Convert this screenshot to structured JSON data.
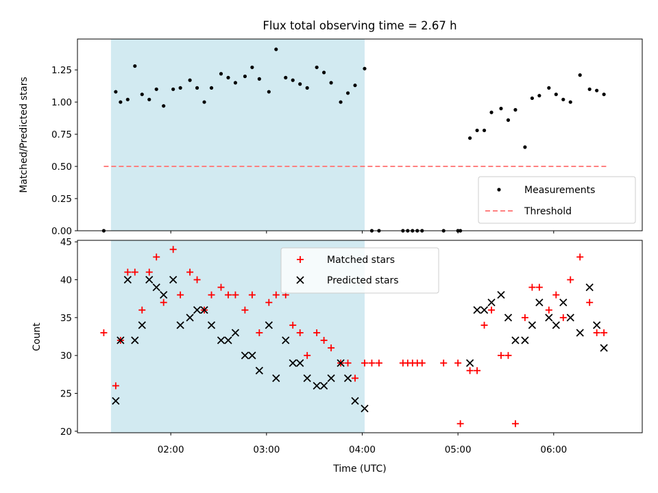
{
  "chart_data": {
    "type": "scatter",
    "title": "Flux total observing time = 2.67 h",
    "xlabel": "Time (UTC)",
    "x_tick_labels": [
      "02:00",
      "03:00",
      "04:00",
      "05:00",
      "06:00"
    ],
    "x_ticks_hours": [
      2,
      3,
      4,
      5,
      6
    ],
    "xlim_hours": [
      1.025,
      6.925
    ],
    "shaded_span_hours": [
      1.375,
      4.025
    ],
    "top": {
      "ylabel": "Matched/Predicted stars",
      "ylim": [
        0,
        1.49
      ],
      "y_tick_labels": [
        "0.00",
        "0.25",
        "0.50",
        "0.75",
        "1.00",
        "1.25"
      ],
      "y_ticks": [
        0,
        0.25,
        0.5,
        0.75,
        1.0,
        1.25
      ],
      "threshold": {
        "name": "Threshold",
        "value": 0.5,
        "x_range_hours": [
          1.3,
          6.55
        ],
        "color": "#ff8080"
      },
      "measurements": {
        "name": "Measurements",
        "color": "#000000",
        "x": [
          1.3,
          1.425,
          1.475,
          1.55,
          1.625,
          1.7,
          1.775,
          1.85,
          1.925,
          2.025,
          2.1,
          2.2,
          2.275,
          2.35,
          2.425,
          2.525,
          2.6,
          2.675,
          2.775,
          2.85,
          2.925,
          3.025,
          3.1,
          3.2,
          3.275,
          3.35,
          3.425,
          3.525,
          3.6,
          3.675,
          3.775,
          3.85,
          3.925,
          4.025,
          4.1,
          4.175,
          4.425,
          4.475,
          4.525,
          4.575,
          4.625,
          4.85,
          5.0,
          5.025,
          5.125,
          5.2,
          5.275,
          5.35,
          5.45,
          5.525,
          5.6,
          5.7,
          5.775,
          5.85,
          5.95,
          6.025,
          6.1,
          6.175,
          6.275,
          6.375,
          6.45,
          6.525
        ],
        "y": [
          0.0,
          1.08,
          1.0,
          1.02,
          1.28,
          1.06,
          1.02,
          1.1,
          0.97,
          1.1,
          1.11,
          1.17,
          1.11,
          1.0,
          1.11,
          1.22,
          1.19,
          1.15,
          1.2,
          1.27,
          1.18,
          1.08,
          1.41,
          1.19,
          1.17,
          1.14,
          1.11,
          1.27,
          1.23,
          1.15,
          1.0,
          1.07,
          1.13,
          1.26,
          0.0,
          0.0,
          0.0,
          0.0,
          0.0,
          0.0,
          0.0,
          0.0,
          0.0,
          0.0,
          0.72,
          0.78,
          0.78,
          0.92,
          0.95,
          0.86,
          0.94,
          0.65,
          1.03,
          1.05,
          1.11,
          1.06,
          1.02,
          1.0,
          1.21,
          1.1,
          1.09,
          1.06
        ]
      }
    },
    "bottom": {
      "ylabel": "Count",
      "ylim": [
        19.8,
        45.2
      ],
      "y_tick_labels": [
        "20",
        "25",
        "30",
        "35",
        "40",
        "45"
      ],
      "y_ticks": [
        20,
        25,
        30,
        35,
        40,
        45
      ],
      "matched": {
        "name": "Matched stars",
        "color": "#ff0000",
        "x": [
          1.3,
          1.425,
          1.475,
          1.55,
          1.625,
          1.7,
          1.775,
          1.85,
          1.925,
          2.025,
          2.1,
          2.2,
          2.275,
          2.35,
          2.425,
          2.525,
          2.6,
          2.675,
          2.775,
          2.85,
          2.925,
          3.025,
          3.1,
          3.2,
          3.275,
          3.35,
          3.425,
          3.525,
          3.6,
          3.675,
          3.775,
          3.85,
          3.925,
          4.025,
          4.1,
          4.175,
          4.425,
          4.475,
          4.525,
          4.575,
          4.625,
          4.85,
          5.0,
          5.025,
          5.125,
          5.2,
          5.275,
          5.35,
          5.45,
          5.525,
          5.6,
          5.7,
          5.775,
          5.85,
          5.95,
          6.025,
          6.1,
          6.175,
          6.275,
          6.375,
          6.45,
          6.525
        ],
        "y": [
          33,
          26,
          32,
          41,
          41,
          36,
          41,
          43,
          37,
          44,
          38,
          41,
          40,
          36,
          38,
          39,
          38,
          38,
          36,
          38,
          33,
          37,
          38,
          38,
          34,
          33,
          30,
          33,
          32,
          31,
          29,
          29,
          27,
          29,
          29,
          29,
          29,
          29,
          29,
          29,
          29,
          29,
          29,
          21,
          28,
          28,
          34,
          36,
          30,
          30,
          21,
          35,
          39,
          39,
          36,
          38,
          35,
          40,
          43,
          37,
          33,
          33
        ]
      },
      "predicted": {
        "name": "Predicted stars",
        "color": "#000000",
        "x": [
          1.425,
          1.475,
          1.55,
          1.625,
          1.7,
          1.775,
          1.85,
          1.925,
          2.025,
          2.1,
          2.2,
          2.275,
          2.35,
          2.425,
          2.525,
          2.6,
          2.675,
          2.775,
          2.85,
          2.925,
          3.025,
          3.1,
          3.2,
          3.275,
          3.35,
          3.425,
          3.525,
          3.6,
          3.675,
          3.775,
          3.85,
          3.925,
          4.025,
          5.125,
          5.2,
          5.275,
          5.35,
          5.45,
          5.525,
          5.6,
          5.7,
          5.775,
          5.85,
          5.95,
          6.025,
          6.1,
          6.175,
          6.275,
          6.375,
          6.45,
          6.525
        ],
        "y": [
          24,
          32,
          40,
          32,
          34,
          40,
          39,
          38,
          40,
          34,
          35,
          36,
          36,
          34,
          32,
          32,
          33,
          30,
          30,
          28,
          34,
          27,
          32,
          29,
          29,
          27,
          26,
          26,
          27,
          29,
          27,
          24,
          23,
          29,
          36,
          36,
          37,
          38,
          35,
          32,
          32,
          34,
          37,
          35,
          34,
          37,
          35,
          33,
          39,
          34,
          31
        ]
      }
    }
  },
  "colors": {
    "span": "#add8e6",
    "axes": "#000000"
  }
}
